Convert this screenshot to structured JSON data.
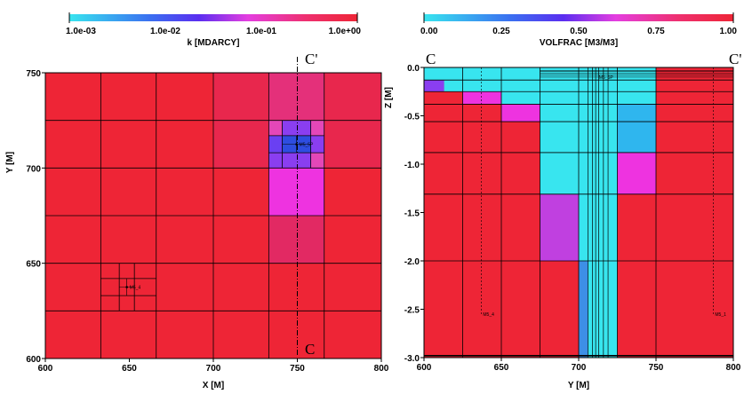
{
  "colors": {
    "background": "#ffffff",
    "red": "#ee2536",
    "crimson": "#e8274d",
    "rose": "#e22963",
    "pink": "#e4307a",
    "magenta_light": "#e447b8",
    "magenta": "#ee33e0",
    "violet": "#c040e0",
    "purple": "#8a3ef0",
    "indigo": "#6a40f2",
    "blue": "#2e4de0",
    "mid_blue": "#3d8fe6",
    "light_blue": "#2fb6ee",
    "cyan": "#38e5ef",
    "grid_line": "#000000"
  },
  "chart_data": [
    {
      "type": "heatmap",
      "colorbar": {
        "label": "k [MDARCY]",
        "scale": "log",
        "range": [
          0.001,
          1.0
        ],
        "tick_labels": [
          "1.0e-03",
          "1.0e-02",
          "1.0e-01",
          "1.0e+00"
        ],
        "colormap": [
          "cyan",
          "blue",
          "purple",
          "magenta",
          "red"
        ]
      },
      "xlabel": "X [M]",
      "ylabel": "Y [M]",
      "xlim": [
        600,
        800
      ],
      "ylim": [
        600,
        750
      ],
      "x_ticks": [
        "600",
        "650",
        "700",
        "750",
        "800"
      ],
      "y_ticks": [
        "600",
        "650",
        "700",
        "750"
      ],
      "well_labels": [
        "M5_4",
        "M5_5P"
      ],
      "section_labels": [
        "C'",
        "C"
      ],
      "section_line_x": 750,
      "cells": [
        {
          "x": [
            600,
            800
          ],
          "y": [
            600,
            750
          ],
          "k_color": "red"
        },
        {
          "x": [
            700,
            733
          ],
          "y": [
            700,
            725
          ],
          "k_color": "crimson"
        },
        {
          "x": [
            766,
            800
          ],
          "y": [
            700,
            725
          ],
          "k_color": "crimson"
        },
        {
          "x": [
            733,
            766
          ],
          "y": [
            650,
            675
          ],
          "k_color": "rose"
        },
        {
          "x": [
            733,
            766
          ],
          "y": [
            675,
            700
          ],
          "k_color": "pink"
        },
        {
          "x": [
            733,
            766
          ],
          "y": [
            725,
            750
          ],
          "k_color": "pink"
        },
        {
          "x": [
            733,
            766
          ],
          "y": [
            700,
            725
          ],
          "k_color": "magenta_light"
        },
        {
          "x": [
            700,
            733
          ],
          "y": [
            725,
            750
          ],
          "k_color": "crimson"
        },
        {
          "x": [
            766,
            800
          ],
          "y": [
            725,
            750
          ],
          "k_color": "crimson"
        },
        {
          "x": [
            733,
            766
          ],
          "y": [
            675,
            700
          ],
          "k_color": "magenta"
        },
        {
          "x": [
            741,
            758
          ],
          "y": [
            717,
            725
          ],
          "k_color": "purple"
        },
        {
          "x": [
            733,
            741
          ],
          "y": [
            708,
            717
          ],
          "k_color": "indigo"
        },
        {
          "x": [
            758,
            766
          ],
          "y": [
            708,
            717
          ],
          "k_color": "purple"
        },
        {
          "x": [
            741,
            758
          ],
          "y": [
            700,
            708
          ],
          "k_color": "purple"
        },
        {
          "x": [
            741,
            758
          ],
          "y": [
            708,
            717
          ],
          "k_color": "blue"
        },
        {
          "x": [
            733,
            741
          ],
          "y": [
            700,
            708
          ],
          "k_color": "purple"
        }
      ]
    },
    {
      "type": "heatmap",
      "colorbar": {
        "label": "VOLFRAC [M3/M3]",
        "scale": "linear",
        "range": [
          0.0,
          1.0
        ],
        "tick_labels": [
          "0.00",
          "0.25",
          "0.50",
          "0.75",
          "1.00"
        ],
        "colormap": [
          "cyan",
          "blue",
          "purple",
          "magenta",
          "red"
        ]
      },
      "xlabel": "Y [M]",
      "ylabel": "Z [M]",
      "xlim": [
        600,
        800
      ],
      "ylim": [
        -3.0,
        0.0
      ],
      "x_ticks": [
        "600",
        "650",
        "700",
        "750",
        "800"
      ],
      "y_ticks": [
        "0.0",
        "-0.5",
        "-1.0",
        "-1.5",
        "-2.0",
        "-2.5",
        "-3.0"
      ],
      "well_labels": [
        "M5_5P",
        "M5_4",
        "M5_1"
      ],
      "section_labels": [
        "C",
        "C'"
      ],
      "cells": [
        {
          "x": [
            600,
            800
          ],
          "y": [
            -3.0,
            0.0
          ],
          "vf_color": "red"
        },
        {
          "x": [
            600,
            750
          ],
          "y": [
            -0.13,
            0.0
          ],
          "vf_color": "cyan"
        },
        {
          "x": [
            600,
            613
          ],
          "y": [
            -0.25,
            -0.13
          ],
          "vf_color": "purple"
        },
        {
          "x": [
            613,
            750
          ],
          "y": [
            -0.25,
            -0.13
          ],
          "vf_color": "cyan"
        },
        {
          "x": [
            625,
            650
          ],
          "y": [
            -0.38,
            -0.25
          ],
          "vf_color": "magenta"
        },
        {
          "x": [
            650,
            750
          ],
          "y": [
            -0.38,
            -0.25
          ],
          "vf_color": "cyan"
        },
        {
          "x": [
            650,
            675
          ],
          "y": [
            -0.56,
            -0.38
          ],
          "vf_color": "magenta"
        },
        {
          "x": [
            675,
            725
          ],
          "y": [
            -0.56,
            -0.38
          ],
          "vf_color": "cyan"
        },
        {
          "x": [
            725,
            750
          ],
          "y": [
            -0.56,
            -0.38
          ],
          "vf_color": "light_blue"
        },
        {
          "x": [
            675,
            725
          ],
          "y": [
            -0.88,
            -0.56
          ],
          "vf_color": "cyan"
        },
        {
          "x": [
            725,
            750
          ],
          "y": [
            -0.88,
            -0.56
          ],
          "vf_color": "light_blue"
        },
        {
          "x": [
            675,
            725
          ],
          "y": [
            -1.31,
            -0.88
          ],
          "vf_color": "cyan"
        },
        {
          "x": [
            725,
            750
          ],
          "y": [
            -1.31,
            -0.88
          ],
          "vf_color": "magenta"
        },
        {
          "x": [
            675,
            700
          ],
          "y": [
            -2.0,
            -1.31
          ],
          "vf_color": "violet"
        },
        {
          "x": [
            700,
            725
          ],
          "y": [
            -2.0,
            -1.31
          ],
          "vf_color": "cyan"
        },
        {
          "x": [
            700,
            706
          ],
          "y": [
            -3.0,
            -2.0
          ],
          "vf_color": "mid_blue"
        },
        {
          "x": [
            706,
            725
          ],
          "y": [
            -3.0,
            -2.0
          ],
          "vf_color": "cyan"
        }
      ]
    }
  ]
}
